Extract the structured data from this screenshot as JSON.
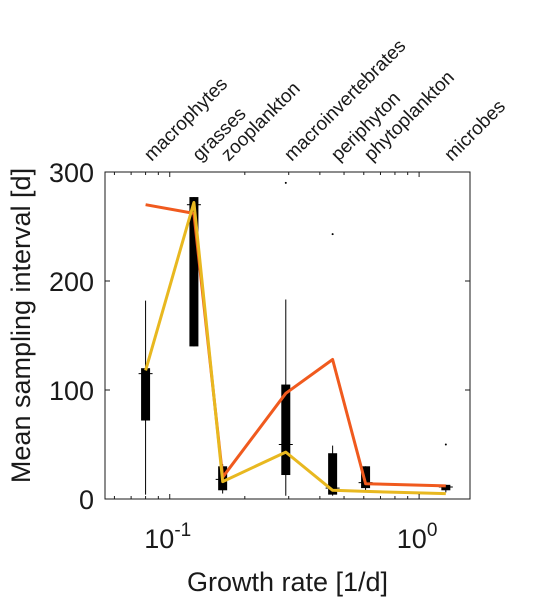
{
  "chart_data": {
    "type": "boxplot-line",
    "xlabel": "Growth rate [1/d]",
    "ylabel": "Mean sampling interval [d]",
    "x_scale": "log",
    "xlim": [
      0.055,
      1.6
    ],
    "ylim": [
      0,
      300
    ],
    "y_ticks": [
      0,
      100,
      200,
      300
    ],
    "y_tick_labels": [
      "0",
      "100",
      "200",
      "300"
    ],
    "x_ticks": [
      {
        "value": 0.1,
        "base": "10",
        "exponent": "-1"
      },
      {
        "value": 1,
        "base": "10",
        "exponent": "0"
      }
    ],
    "grid": false,
    "groups": [
      {
        "name": "macrophytes",
        "x": 0.08,
        "whisker_low": 4,
        "q1": 72,
        "median": 115,
        "q3": 120,
        "whisker_high": 182,
        "outliers": []
      },
      {
        "name": "grasses",
        "x": 0.125,
        "whisker_low": 140,
        "q1": 140,
        "median": 270,
        "q3": 277,
        "whisker_high": 277,
        "outliers": []
      },
      {
        "name": "zooplankton",
        "x": 0.163,
        "whisker_low": 5,
        "q1": 8,
        "median": 18,
        "q3": 30,
        "whisker_high": 32,
        "outliers": []
      },
      {
        "name": "macroinvertebrates",
        "x": 0.292,
        "whisker_low": 3,
        "q1": 22,
        "median": 50,
        "q3": 105,
        "whisker_high": 183,
        "outliers": [
          290
        ]
      },
      {
        "name": "periphyton",
        "x": 0.45,
        "whisker_low": 3,
        "q1": 4,
        "median": 10,
        "q3": 42,
        "whisker_high": 49,
        "outliers": [
          243
        ]
      },
      {
        "name": "phytoplankton",
        "x": 0.61,
        "whisker_low": 8,
        "q1": 10,
        "median": 15,
        "q3": 30,
        "whisker_high": 30,
        "outliers": []
      },
      {
        "name": "microbes",
        "x": 1.28,
        "whisker_low": 6,
        "q1": 8,
        "median": 11,
        "q3": 13,
        "whisker_high": 13,
        "outliers": [
          50
        ]
      }
    ],
    "series": [
      {
        "color": "#f05a1e",
        "x": [
          0.08,
          0.125,
          0.163,
          0.292,
          0.45,
          0.61,
          1.28
        ],
        "values": [
          270,
          262,
          20,
          97,
          128,
          14,
          12
        ]
      },
      {
        "color": "#e8b820",
        "x": [
          0.08,
          0.125,
          0.163,
          0.292,
          0.45,
          0.61,
          1.28
        ],
        "values": [
          118,
          272,
          16,
          43,
          8,
          7,
          5
        ]
      }
    ],
    "colors": {
      "box": "#000000",
      "axis": "#1a1a1a"
    }
  }
}
